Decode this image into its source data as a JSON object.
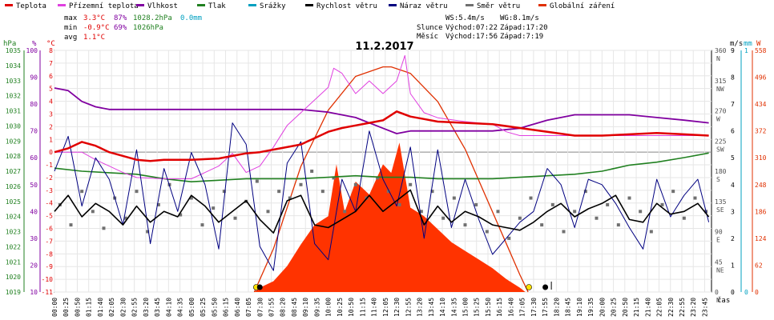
{
  "legend": [
    {
      "label": "Teplota",
      "color": "#e00000"
    },
    {
      "label": "Přízemní teplota",
      "color": "#e040e0"
    },
    {
      "label": "Vlhkost",
      "color": "#8000a0"
    },
    {
      "label": "Tlak",
      "color": "#208020"
    },
    {
      "label": "Srážky",
      "color": "#00a0c0"
    },
    {
      "label": "Rychlost větru",
      "color": "#000000"
    },
    {
      "label": "Náraz větru",
      "color": "#000080"
    },
    {
      "label": "Směr větru",
      "color": "#707070"
    },
    {
      "label": "Globální záření",
      "color": "#e03000"
    }
  ],
  "stats": {
    "max_label": "max",
    "max_temp": "3.3°C",
    "max_hum": "87%",
    "max_press": "1028.2hPa",
    "max_rain": "0.0mm",
    "min_label": "min",
    "min_temp": "-0.9°C",
    "min_hum": "69%",
    "min_press": "1026hPa",
    "avg_label": "avg",
    "avg_temp": "1.1°C"
  },
  "wind_info": {
    "ws": "WS:5.4m/s",
    "wg": "WG:8.1m/s"
  },
  "sun": {
    "label": "Slunce",
    "rise": "Východ:07:22",
    "set": "Západ:17:20"
  },
  "moon": {
    "label": "Měsíc",
    "rise": "Východ:17:56",
    "set": "Západ:7:19"
  },
  "axis_units": {
    "hpa": "hPa",
    "percent": "%",
    "celsius": "°C",
    "ms": "m/s",
    "mm": "mm",
    "w": "W",
    "time": "čas"
  },
  "chart_data": {
    "type": "line",
    "title": "11.2.2017",
    "x_ticks": [
      "00:00",
      "00:25",
      "00:50",
      "01:15",
      "01:40",
      "02:05",
      "02:30",
      "02:55",
      "03:20",
      "03:45",
      "04:10",
      "04:35",
      "05:00",
      "05:25",
      "05:50",
      "06:15",
      "06:40",
      "07:05",
      "07:30",
      "07:55",
      "08:20",
      "08:45",
      "09:10",
      "09:35",
      "10:00",
      "10:25",
      "10:50",
      "11:15",
      "11:40",
      "12:05",
      "12:30",
      "12:55",
      "13:20",
      "13:45",
      "14:10",
      "14:35",
      "15:00",
      "15:25",
      "15:50",
      "16:15",
      "16:40",
      "17:05",
      "17:30",
      "17:55",
      "18:20",
      "18:45",
      "19:10",
      "19:35",
      "20:00",
      "20:25",
      "20:50",
      "21:15",
      "21:40",
      "22:05",
      "22:30",
      "22:55",
      "23:20",
      "23:45"
    ],
    "axes": {
      "pressure_hpa": {
        "ticks": [
          1035,
          1034,
          1033,
          1032,
          1031,
          1030,
          1029,
          1028,
          1027,
          1026,
          1025,
          1024,
          1023,
          1022,
          1021,
          1020,
          1019
        ],
        "range": [
          1019,
          1035
        ]
      },
      "humidity_pct": {
        "ticks": [
          100,
          90,
          80,
          70,
          60,
          50,
          40,
          30,
          20,
          10
        ],
        "range": [
          10,
          100
        ]
      },
      "temperature_c": {
        "ticks": [
          8,
          7,
          6,
          5,
          4,
          3,
          2,
          1,
          0,
          -1,
          -2,
          -3,
          -4,
          -5,
          -6,
          -7,
          -8,
          -9,
          -10,
          -11
        ],
        "range": [
          -11,
          8
        ]
      },
      "wind_ms": {
        "ticks": [
          9,
          8,
          7,
          6,
          5,
          4,
          3,
          2,
          1,
          0
        ],
        "range": [
          0,
          9
        ]
      },
      "rain_mm": {
        "ticks": [
          1,
          0
        ],
        "range": [
          0,
          1
        ]
      },
      "radiation_w": {
        "ticks": [
          558,
          496,
          434,
          372,
          310,
          248,
          186,
          124,
          62,
          0
        ],
        "range": [
          0,
          558
        ]
      },
      "direction": {
        "ticks": [
          {
            "deg": 360,
            "dir": "N"
          },
          {
            "deg": 315,
            "dir": "NW"
          },
          {
            "deg": 270,
            "dir": "W"
          },
          {
            "deg": 225,
            "dir": "SW"
          },
          {
            "deg": 180,
            "dir": "S"
          },
          {
            "deg": 135,
            "dir": "SE"
          },
          {
            "deg": 90,
            "dir": "E"
          },
          {
            "deg": 45,
            "dir": "NE"
          },
          {
            "deg": 0,
            "dir": "N"
          }
        ],
        "range": [
          0,
          360
        ]
      }
    },
    "series": [
      {
        "name": "Teplota",
        "color": "#e00000",
        "axis": "temperature_c",
        "x": [
          0,
          0.5,
          1,
          1.5,
          2,
          2.5,
          3,
          3.5,
          4,
          5,
          6,
          6.5,
          7,
          7.5,
          8,
          9,
          9.5,
          10,
          10.5,
          11,
          11.5,
          12,
          12.5,
          13,
          13.5,
          14,
          15,
          16,
          17,
          18,
          19,
          20,
          21,
          22,
          23,
          23.9
        ],
        "values": [
          0.0,
          0.3,
          0.8,
          0.5,
          0.0,
          -0.3,
          -0.6,
          -0.7,
          -0.6,
          -0.6,
          -0.5,
          -0.3,
          -0.1,
          0.0,
          0.2,
          0.6,
          1.1,
          1.6,
          1.9,
          2.1,
          2.3,
          2.5,
          3.2,
          2.8,
          2.6,
          2.4,
          2.3,
          2.2,
          1.9,
          1.6,
          1.3,
          1.3,
          1.4,
          1.5,
          1.4,
          1.3
        ]
      },
      {
        "name": "Přízemní teplota",
        "color": "#e040e0",
        "axis": "temperature_c",
        "x": [
          0,
          1,
          1.5,
          2,
          2.5,
          3,
          4,
          5,
          5.5,
          6,
          6.5,
          7,
          7.5,
          8,
          8.5,
          9,
          9.5,
          10,
          10.2,
          10.5,
          11,
          11.5,
          12,
          12.5,
          12.8,
          13,
          13.5,
          14,
          15,
          16,
          16.5,
          17,
          18,
          19,
          20,
          21,
          22,
          23,
          23.9
        ],
        "values": [
          0.0,
          0.0,
          -0.6,
          -1.1,
          -1.6,
          -2.0,
          -2.1,
          -2.1,
          -1.6,
          -1.1,
          -0.1,
          -1.6,
          -1.1,
          0.4,
          2.1,
          3.1,
          4.1,
          5.1,
          6.6,
          6.2,
          4.6,
          5.6,
          4.6,
          5.6,
          7.6,
          4.6,
          3.1,
          2.7,
          2.4,
          2.2,
          1.6,
          1.3,
          1.3,
          1.3,
          1.3,
          1.3,
          1.3,
          1.3,
          1.3
        ]
      },
      {
        "name": "Vlhkost",
        "color": "#8000a0",
        "axis": "humidity_pct",
        "x": [
          0,
          0.5,
          1,
          1.5,
          2,
          3,
          4,
          5,
          6,
          7,
          8,
          9,
          10,
          11,
          12,
          12.5,
          13,
          14,
          15,
          16,
          17,
          18,
          19,
          20,
          21,
          22,
          23,
          23.9
        ],
        "values": [
          86,
          85,
          81,
          79,
          78,
          78,
          78,
          78,
          78,
          78,
          78,
          78,
          77,
          75,
          71,
          69,
          70,
          70,
          70,
          70,
          71,
          74,
          76,
          76,
          76,
          75,
          74,
          73
        ]
      },
      {
        "name": "Tlak",
        "color": "#208020",
        "axis": "pressure_hpa",
        "x": [
          0,
          1,
          2,
          3,
          4,
          5,
          6,
          7,
          8,
          9,
          10,
          11,
          12,
          13,
          14,
          15,
          16,
          17,
          18,
          19,
          20,
          21,
          22,
          23,
          23.9
        ],
        "values": [
          1027.2,
          1027.0,
          1026.9,
          1026.8,
          1026.5,
          1026.3,
          1026.4,
          1026.5,
          1026.5,
          1026.5,
          1026.6,
          1026.7,
          1026.6,
          1026.6,
          1026.5,
          1026.5,
          1026.5,
          1026.6,
          1026.7,
          1026.8,
          1027.0,
          1027.4,
          1027.6,
          1027.9,
          1028.2
        ]
      },
      {
        "name": "Rychlost větru",
        "color": "#000000",
        "axis": "wind_ms",
        "x": [
          0,
          0.5,
          1,
          1.5,
          2,
          2.5,
          3,
          3.5,
          4,
          4.5,
          5,
          5.5,
          6,
          6.5,
          7,
          7.5,
          8,
          8.5,
          9,
          9.5,
          10,
          10.5,
          11,
          11.5,
          12,
          12.5,
          13,
          13.5,
          14,
          14.5,
          15,
          15.5,
          16,
          16.5,
          17,
          17.5,
          18,
          18.5,
          19,
          19.5,
          20,
          20.5,
          21,
          21.5,
          22,
          22.5,
          23,
          23.5,
          23.9
        ],
        "values": [
          3.0,
          3.6,
          2.8,
          3.3,
          3.0,
          2.5,
          3.2,
          2.6,
          3.0,
          2.8,
          3.6,
          3.2,
          2.6,
          3.0,
          3.4,
          2.7,
          2.2,
          3.4,
          3.6,
          2.5,
          2.4,
          2.7,
          3.0,
          3.6,
          3.0,
          3.4,
          3.8,
          2.5,
          3.2,
          2.6,
          3.0,
          2.8,
          2.5,
          2.4,
          2.3,
          2.6,
          3.0,
          3.3,
          2.8,
          3.1,
          3.3,
          3.6,
          2.7,
          2.6,
          3.3,
          2.9,
          3.0,
          3.3,
          2.8
        ]
      },
      {
        "name": "Náraz větru",
        "color": "#000080",
        "axis": "wind_ms",
        "x": [
          0,
          0.5,
          1,
          1.5,
          2,
          2.5,
          3,
          3.5,
          4,
          4.5,
          5,
          5.5,
          6,
          6.5,
          7,
          7.5,
          8,
          8.5,
          9,
          9.5,
          10,
          10.5,
          11,
          11.5,
          12,
          12.5,
          13,
          13.5,
          14,
          14.5,
          15,
          15.5,
          16,
          16.5,
          17,
          17.5,
          18,
          18.5,
          19,
          19.5,
          20,
          20.5,
          21,
          21.5,
          22,
          22.5,
          23,
          23.5,
          23.9
        ],
        "values": [
          4.5,
          5.8,
          3.2,
          5.0,
          4.2,
          2.5,
          5.3,
          1.8,
          4.6,
          3.0,
          5.2,
          4.0,
          1.6,
          6.3,
          5.5,
          1.7,
          0.8,
          4.8,
          5.6,
          1.8,
          1.2,
          4.2,
          3.0,
          6.0,
          4.2,
          3.2,
          5.4,
          2.0,
          5.3,
          2.4,
          4.2,
          2.7,
          1.4,
          2.0,
          2.6,
          3.0,
          4.6,
          4.0,
          2.4,
          4.2,
          4.0,
          3.3,
          2.4,
          1.6,
          4.2,
          2.8,
          3.6,
          4.2,
          2.6
        ]
      },
      {
        "name": "Směr větru",
        "color": "#707070",
        "axis": "direction",
        "style": "points",
        "x": [
          0.2,
          0.6,
          1.0,
          1.4,
          1.8,
          2.2,
          2.6,
          3.0,
          3.4,
          3.8,
          4.2,
          4.6,
          5.0,
          5.4,
          5.8,
          6.2,
          6.6,
          7.0,
          7.4,
          7.8,
          8.2,
          8.6,
          9.0,
          9.4,
          9.8,
          10.2,
          10.6,
          11.0,
          11.4,
          11.8,
          12.2,
          12.6,
          13.0,
          13.4,
          13.8,
          14.2,
          14.6,
          15.0,
          15.4,
          15.8,
          16.2,
          16.6,
          17.0,
          17.4,
          17.8,
          18.2,
          18.6,
          19.0,
          19.4,
          19.8,
          20.2,
          20.6,
          21.0,
          21.4,
          21.8,
          22.2,
          22.6,
          23.0,
          23.4,
          23.8
        ],
        "values": [
          130,
          100,
          150,
          120,
          95,
          140,
          110,
          150,
          90,
          130,
          160,
          115,
          140,
          100,
          125,
          150,
          110,
          135,
          165,
          120,
          150,
          140,
          160,
          180,
          150,
          170,
          120,
          160,
          140,
          170,
          150,
          130,
          160,
          120,
          150,
          110,
          140,
          100,
          130,
          90,
          120,
          80,
          110,
          140,
          100,
          130,
          90,
          120,
          150,
          110,
          130,
          100,
          140,
          120,
          90,
          130,
          150,
          110,
          140,
          120
        ]
      },
      {
        "name": "Globální záření",
        "color": "#e03000",
        "axis": "radiation_w",
        "style": "area",
        "x": [
          7.3,
          7.5,
          8,
          8.5,
          9,
          9.5,
          10,
          10.3,
          10.6,
          11,
          11.5,
          12,
          12.3,
          12.6,
          13,
          13.5,
          14,
          14.5,
          15,
          15.5,
          16,
          16.5,
          17,
          17.2
        ],
        "values": [
          0,
          10,
          25,
          60,
          110,
          155,
          175,
          295,
          185,
          255,
          225,
          295,
          275,
          345,
          195,
          175,
          145,
          115,
          95,
          75,
          55,
          30,
          10,
          0
        ]
      },
      {
        "name": "clear_sky_radiation",
        "color": "#e03000",
        "axis": "radiation_w",
        "style": "curve",
        "x": [
          7.3,
          8,
          9,
          10,
          11,
          12,
          12.3,
          13,
          14,
          15,
          16,
          17,
          17.3
        ],
        "values": [
          0,
          100,
          290,
          420,
          498,
          520,
          520,
          505,
          440,
          330,
          185,
          40,
          0
        ]
      }
    ]
  }
}
